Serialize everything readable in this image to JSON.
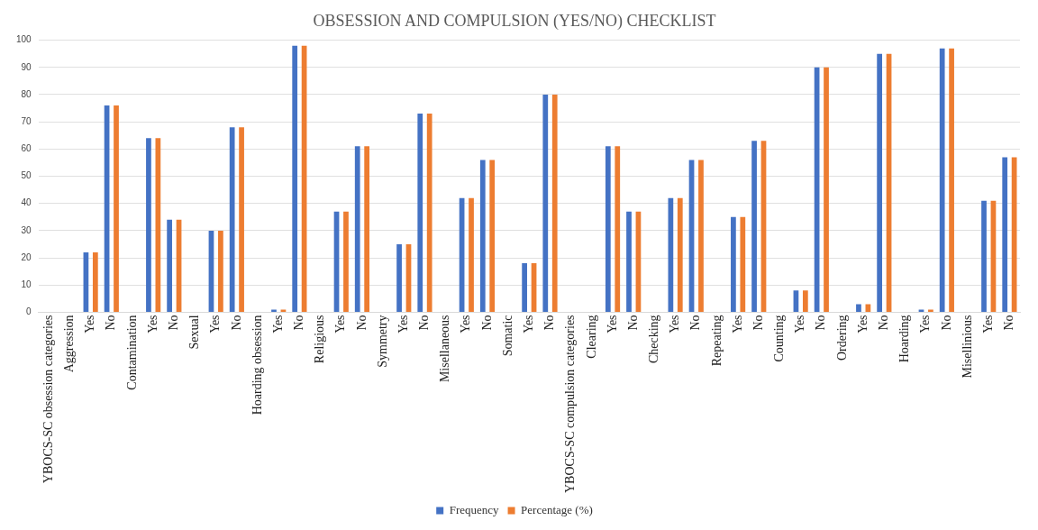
{
  "chart_data": {
    "type": "bar",
    "title": "OBSESSION AND COMPULSION (YES/NO) CHECKLIST",
    "categories": [
      "YBOCS-SC obsession categories",
      "Aggression",
      "Yes",
      "No",
      "Contamination",
      "Yes",
      "No",
      "Sexual",
      "Yes",
      "No",
      "Hoarding obsession",
      "Yes",
      "No",
      "Religious",
      "Yes",
      "No",
      "Symmetry",
      "Yes",
      "No",
      "Misellaneous",
      "Yes",
      "No",
      "Somatic",
      "Yes",
      "No",
      "YBOCS-SC compulsion categories",
      "Clearing",
      "Yes",
      "No",
      "Checking",
      "Yes",
      "No",
      "Repeating",
      "Yes",
      "No",
      "Counting",
      "Yes",
      "No",
      "Ordering",
      "Yes",
      "No",
      "Hoarding",
      "Yes",
      "No",
      "Misellinious",
      "Yes",
      "No"
    ],
    "series": [
      {
        "name": "Frequency",
        "color": "#4472c4",
        "values": [
          null,
          null,
          22,
          76,
          null,
          64,
          34,
          null,
          30,
          68,
          null,
          1,
          98,
          null,
          37,
          61,
          null,
          25,
          73,
          null,
          42,
          56,
          null,
          18,
          80,
          null,
          null,
          61,
          37,
          null,
          42,
          56,
          null,
          35,
          63,
          null,
          8,
          90,
          null,
          3,
          95,
          null,
          1,
          97,
          null,
          41,
          57
        ]
      },
      {
        "name": "Percentage (%)",
        "color": "#ed7d31",
        "values": [
          null,
          null,
          22,
          76,
          null,
          64,
          34,
          null,
          30,
          68,
          null,
          1,
          98,
          null,
          37,
          61,
          null,
          25,
          73,
          null,
          42,
          56,
          null,
          18,
          80,
          null,
          null,
          61,
          37,
          null,
          42,
          56,
          null,
          35,
          63,
          null,
          8,
          90,
          null,
          3,
          95,
          null,
          1,
          97,
          null,
          41,
          57
        ]
      }
    ],
    "ylim": [
      0,
      100
    ],
    "yticks": [
      0,
      10,
      20,
      30,
      40,
      50,
      60,
      70,
      80,
      90,
      100
    ],
    "grid": "y",
    "legend": "bottom"
  }
}
